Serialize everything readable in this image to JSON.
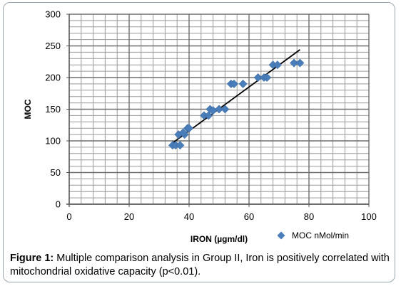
{
  "chart_data": {
    "type": "scatter",
    "xlabel": "IRON (µgm/dl)",
    "ylabel": "MOC",
    "xlim": [
      0,
      100
    ],
    "ylim": [
      0,
      300
    ],
    "x_ticks": [
      0,
      20,
      40,
      60,
      80,
      100
    ],
    "y_ticks": [
      0,
      50,
      100,
      150,
      200,
      250,
      300
    ],
    "grid": true,
    "legend_position": "bottom-right",
    "series": [
      {
        "name": "MOC nMol/min",
        "color": "#4a7ebb",
        "marker": "diamond",
        "x": [
          34.5,
          35.5,
          37,
          36.5,
          38.5,
          39.5,
          38,
          40,
          45,
          46.5,
          47,
          48,
          50,
          52,
          54,
          55,
          58,
          63,
          65,
          66,
          68,
          69.5,
          75,
          77
        ],
        "y": [
          93,
          93,
          93,
          110,
          110,
          120,
          113,
          120,
          140,
          140,
          150,
          148,
          150,
          150,
          190,
          190,
          190,
          200,
          200,
          200,
          220,
          220,
          223,
          223
        ]
      }
    ],
    "trendline": {
      "type": "linear",
      "color": "#000000",
      "x": [
        34,
        77
      ],
      "y": [
        95,
        244
      ]
    }
  },
  "caption": {
    "label": "Figure 1:",
    "text": " Multiple comparison analysis in Group II, Iron is positively correlated with mitochondrial oxidative capacity (p<0.01)."
  }
}
